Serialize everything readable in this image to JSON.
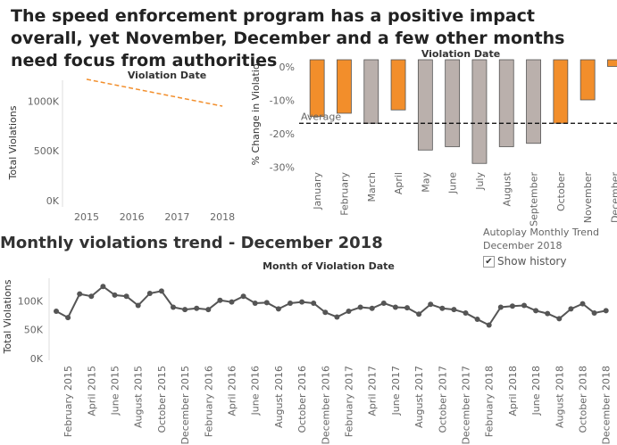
{
  "headline": "The speed enforcement program has a positive impact overall, yet November, December and a few other months need focus from authorities",
  "colors": {
    "highlight": "#f28e2b",
    "neutral": "#bab0ac",
    "line": "#555555",
    "gridline": "#e6e6e6",
    "average": "#000000"
  },
  "trend_section": {
    "title": "Monthly violations trend - December 2018",
    "autoplay_label": "Autoplay Monthly Trend",
    "autoplay_value": "December 2018",
    "show_history_label": "Show history",
    "show_history_checked": true,
    "checkbox_glyph": "✔"
  },
  "chart_data": [
    {
      "type": "line",
      "title": "Violation Date",
      "ylabel": "Total Violations",
      "xlabel": "",
      "x": [
        "2015",
        "2016",
        "2017",
        "2018"
      ],
      "y_ticks": [
        "0K",
        "500K",
        "1000K"
      ],
      "ylim": [
        0,
        1300000
      ],
      "series": [
        {
          "values": [
            1220000,
            1130000,
            1040000,
            950000
          ]
        }
      ],
      "style": "dashed",
      "grid": false
    },
    {
      "type": "bar",
      "title": "Violation Date",
      "ylabel": "% Change in Violatio..",
      "categories": [
        "January",
        "February",
        "March",
        "April",
        "May",
        "June",
        "July",
        "August",
        "September",
        "October",
        "November",
        "December"
      ],
      "values": [
        -17,
        -16,
        -19,
        -15,
        -27,
        -26,
        -31,
        -26,
        -25,
        -19,
        -12,
        -2
      ],
      "highlighted": [
        true,
        true,
        false,
        true,
        false,
        false,
        false,
        false,
        false,
        true,
        true,
        true
      ],
      "y_ticks": [
        "0%",
        "-10%",
        "-20%",
        "-30%"
      ],
      "ylim": [
        -33,
        2
      ],
      "reference_line": {
        "label": "Average",
        "value": -19
      }
    },
    {
      "type": "line",
      "title": "Month of Violation Date",
      "ylabel": "Total Violations",
      "y_ticks": [
        "0K",
        "50K",
        "100K"
      ],
      "ylim": [
        0,
        130000
      ],
      "x_tick_labels": [
        "February 2015",
        "April 2015",
        "June 2015",
        "August 2015",
        "October 2015",
        "December 2015",
        "February 2016",
        "April 2016",
        "June 2016",
        "August 2016",
        "October 2016",
        "December 2016",
        "February 2017",
        "April 2017",
        "June 2017",
        "August 2017",
        "October 2017",
        "December 2017",
        "February 2018",
        "April 2018",
        "June 2018",
        "August 2018",
        "October 2018",
        "December 2018"
      ],
      "series": [
        {
          "values": [
            82000,
            71000,
            112000,
            108000,
            125000,
            110000,
            108000,
            92000,
            113000,
            117000,
            89000,
            85000,
            87000,
            85000,
            101000,
            98000,
            108000,
            96000,
            97000,
            86000,
            96000,
            98000,
            96000,
            80000,
            72000,
            82000,
            89000,
            87000,
            96000,
            89000,
            88000,
            77000,
            94000,
            87000,
            85000,
            79000,
            68000,
            58000,
            89000,
            91000,
            92000,
            83000,
            78000,
            69000,
            86000,
            95000,
            79000,
            83000
          ]
        }
      ]
    }
  ]
}
